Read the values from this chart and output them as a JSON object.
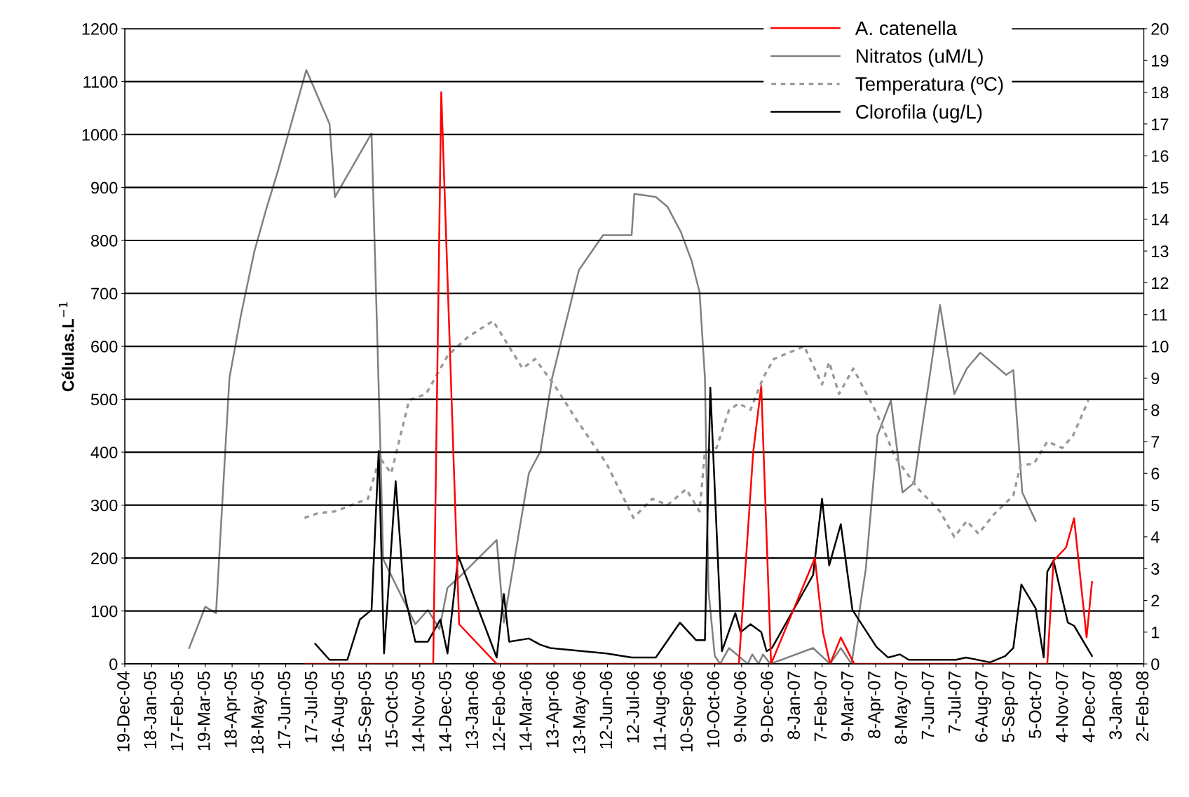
{
  "chart_data": {
    "type": "line",
    "ylabel": "Células.L$^{−1}$",
    "xlim": [
      "2004-12-19",
      "2008-02-02"
    ],
    "xticks": [
      {
        "value": "2004-12-19",
        "label": "19-Dec-04"
      },
      {
        "value": "2005-01-18",
        "label": "18-Jan-05"
      },
      {
        "value": "2005-02-17",
        "label": "17-Feb-05"
      },
      {
        "value": "2005-03-19",
        "label": "19-Mar-05"
      },
      {
        "value": "2005-04-18",
        "label": "18-Apr-05"
      },
      {
        "value": "2005-05-18",
        "label": "18-May-05"
      },
      {
        "value": "2005-06-17",
        "label": "17-Jun-05"
      },
      {
        "value": "2005-07-17",
        "label": "17-Jul-05"
      },
      {
        "value": "2005-08-16",
        "label": "16-Aug-05"
      },
      {
        "value": "2005-09-15",
        "label": "15-Sep-05"
      },
      {
        "value": "2005-10-15",
        "label": "15-Oct-05"
      },
      {
        "value": "2005-11-14",
        "label": "14-Nov-05"
      },
      {
        "value": "2005-12-14",
        "label": "14-Dec-05"
      },
      {
        "value": "2006-01-13",
        "label": "13-Jan-06"
      },
      {
        "value": "2006-02-12",
        "label": "12-Feb-06"
      },
      {
        "value": "2006-03-14",
        "label": "14-Mar-06"
      },
      {
        "value": "2006-04-13",
        "label": "13-Apr-06"
      },
      {
        "value": "2006-05-13",
        "label": "13-May-06"
      },
      {
        "value": "2006-06-12",
        "label": "12-Jun-06"
      },
      {
        "value": "2006-07-12",
        "label": "12-Jul-06"
      },
      {
        "value": "2006-08-11",
        "label": "11-Aug-06"
      },
      {
        "value": "2006-09-10",
        "label": "10-Sep-06"
      },
      {
        "value": "2006-10-10",
        "label": "10-Oct-06"
      },
      {
        "value": "2006-11-09",
        "label": "9-Nov-06"
      },
      {
        "value": "2006-12-09",
        "label": "9-Dec-06"
      },
      {
        "value": "2007-01-08",
        "label": "8-Jan-07"
      },
      {
        "value": "2007-02-07",
        "label": "7-Feb-07"
      },
      {
        "value": "2007-03-09",
        "label": "9-Mar-07"
      },
      {
        "value": "2007-04-08",
        "label": "8-Apr-07"
      },
      {
        "value": "2007-05-08",
        "label": "8-May-07"
      },
      {
        "value": "2007-06-07",
        "label": "7-Jun-07"
      },
      {
        "value": "2007-07-07",
        "label": "7-Jul-07"
      },
      {
        "value": "2007-08-06",
        "label": "6-Aug-07"
      },
      {
        "value": "2007-09-05",
        "label": "5-Sep-07"
      },
      {
        "value": "2007-10-05",
        "label": "5-Oct-07"
      },
      {
        "value": "2007-11-04",
        "label": "4-Nov-07"
      },
      {
        "value": "2007-12-04",
        "label": "4-Dec-07"
      },
      {
        "value": "2008-01-03",
        "label": "3-Jan-08"
      },
      {
        "value": "2008-02-02",
        "label": "2-Feb-08"
      }
    ],
    "ylim": [
      0,
      1200
    ],
    "yticks": [
      0,
      100,
      200,
      300,
      400,
      500,
      600,
      700,
      800,
      900,
      1000,
      1100,
      1200
    ],
    "y2lim": [
      0,
      20
    ],
    "y2ticks": [
      0,
      1,
      2,
      3,
      4,
      5,
      6,
      7,
      8,
      9,
      10,
      11,
      12,
      13,
      14,
      15,
      16,
      17,
      18,
      19,
      20
    ],
    "grid": "y",
    "legend": "top right",
    "marker": "none",
    "series": [
      {
        "name": "A. catenella",
        "color": "#ff0000",
        "line_style": "solid",
        "x": [
          "2005-07-08",
          "2005-11-29",
          "2005-12-08",
          "2005-12-28",
          "2006-02-08",
          "2006-11-06",
          "2006-11-22",
          "2006-12-01",
          "2006-12-12",
          "2007-01-30",
          "2007-02-08",
          "2007-02-16",
          "2007-02-28",
          "2007-03-15",
          "2007-10-17",
          "2007-10-24",
          "2007-11-07",
          "2007-11-16",
          "2007-11-30",
          "2007-12-06"
        ],
        "values": [
          0,
          0,
          1080,
          75,
          0,
          0,
          400,
          525,
          0,
          200,
          60,
          0,
          50,
          0,
          0,
          195,
          220,
          275,
          50,
          155
        ]
      },
      {
        "name": "Nitratos (uM/L)",
        "color": "#808080",
        "line_style": "solid",
        "axis": "y2",
        "x": [
          "2005-03-01",
          "2005-03-19",
          "2005-03-31",
          "2005-04-15",
          "2005-04-28",
          "2005-05-13",
          "2005-05-26",
          "2005-06-08",
          "2005-07-10",
          "2005-08-05",
          "2005-08-11",
          "2005-09-21",
          "2005-10-01",
          "2005-10-04",
          "2005-11-09",
          "2005-11-23",
          "2005-12-06",
          "2005-12-15",
          "2005-12-27",
          "2006-02-08",
          "2006-02-16",
          "2006-03-16",
          "2006-03-29",
          "2006-04-11",
          "2006-05-11",
          "2006-06-07",
          "2006-07-09",
          "2006-07-12",
          "2006-08-05",
          "2006-08-18",
          "2006-09-02",
          "2006-09-14",
          "2006-09-23",
          "2006-09-29",
          "2006-10-03",
          "2006-10-10",
          "2006-10-16",
          "2006-10-26",
          "2006-11-16",
          "2006-11-21",
          "2006-11-28",
          "2006-12-03",
          "2006-12-11",
          "2007-01-28",
          "2007-02-16",
          "2007-02-28",
          "2007-03-12",
          "2007-03-28",
          "2007-04-10",
          "2007-04-25",
          "2007-05-08",
          "2007-05-21",
          "2007-06-19",
          "2007-07-05",
          "2007-07-19",
          "2007-08-03",
          "2007-09-01",
          "2007-09-09",
          "2007-09-19",
          "2007-10-04"
        ],
        "values": [
          0.5,
          1.8,
          1.6,
          9.0,
          11.0,
          13.0,
          14.3,
          15.5,
          18.7,
          17.0,
          14.7,
          16.7,
          6.7,
          3.3,
          1.25,
          1.7,
          1.1,
          2.4,
          2.7,
          3.9,
          1.3,
          6.0,
          6.7,
          9.0,
          12.4,
          13.5,
          13.5,
          14.8,
          14.7,
          14.4,
          13.6,
          12.7,
          11.7,
          9.0,
          2.3,
          0.25,
          0,
          0.5,
          0,
          0.3,
          0,
          0.3,
          0,
          0.5,
          0,
          0.5,
          0,
          3.0,
          7.2,
          8.3,
          5.4,
          5.7,
          11.3,
          8.5,
          9.3,
          9.8,
          9.1,
          9.25,
          5.4,
          4.5
        ]
      },
      {
        "name": "Temperatura (ºC)",
        "color": "#999999",
        "line_style": "dotted",
        "axis": "y2",
        "x": [
          "2005-07-08",
          "2005-07-24",
          "2005-08-11",
          "2005-09-17",
          "2005-09-30",
          "2005-10-13",
          "2005-11-02",
          "2005-11-21",
          "2005-12-15",
          "2006-01-07",
          "2006-02-04",
          "2006-03-09",
          "2006-03-23",
          "2006-04-13",
          "2006-05-08",
          "2006-06-11",
          "2006-07-11",
          "2006-08-01",
          "2006-08-18",
          "2006-09-08",
          "2006-09-23",
          "2006-09-29",
          "2006-10-12",
          "2006-10-26",
          "2006-11-06",
          "2006-11-19",
          "2006-12-03",
          "2006-12-15",
          "2007-01-18",
          "2007-02-07",
          "2007-02-15",
          "2007-02-26",
          "2007-03-14",
          "2007-04-09",
          "2007-04-30",
          "2007-05-26",
          "2007-06-19",
          "2007-07-05",
          "2007-07-19",
          "2007-08-01",
          "2007-08-18",
          "2007-09-09",
          "2007-09-17",
          "2007-10-02",
          "2007-10-17",
          "2007-11-03",
          "2007-11-15",
          "2007-12-02"
        ],
        "values": [
          4.6,
          4.75,
          4.8,
          5.2,
          6.5,
          6.0,
          8.3,
          8.5,
          9.7,
          10.3,
          10.8,
          9.3,
          9.6,
          8.8,
          7.7,
          6.3,
          4.6,
          5.2,
          5.0,
          5.5,
          4.8,
          6.7,
          6.8,
          8.0,
          8.2,
          8.0,
          9.0,
          9.6,
          10.0,
          8.8,
          9.5,
          8.5,
          9.3,
          7.9,
          6.5,
          5.5,
          4.8,
          4.0,
          4.5,
          4.1,
          4.7,
          5.3,
          6.25,
          6.3,
          7.0,
          6.8,
          7.2,
          8.3
        ]
      },
      {
        "name": "Clorofila (ug/L)",
        "color": "#000000",
        "line_style": "solid",
        "axis": "y2",
        "x": [
          "2005-07-20",
          "2005-08-05",
          "2005-08-25",
          "2005-09-08",
          "2005-09-21",
          "2005-09-29",
          "2005-10-05",
          "2005-10-18",
          "2005-10-27",
          "2005-11-09",
          "2005-11-23",
          "2005-12-07",
          "2005-12-15",
          "2005-12-27",
          "2006-02-08",
          "2006-02-16",
          "2006-02-22",
          "2006-03-16",
          "2006-03-29",
          "2006-04-09",
          "2006-06-11",
          "2006-07-09",
          "2006-08-05",
          "2006-09-01",
          "2006-09-19",
          "2006-09-29",
          "2006-10-05",
          "2006-10-18",
          "2006-11-02",
          "2006-11-08",
          "2006-11-19",
          "2006-12-01",
          "2006-12-07",
          "2006-12-13",
          "2007-01-28",
          "2007-02-07",
          "2007-02-15",
          "2007-02-28",
          "2007-03-13",
          "2007-04-09",
          "2007-04-22",
          "2007-05-05",
          "2007-05-15",
          "2007-07-07",
          "2007-07-18",
          "2007-08-14",
          "2007-08-31",
          "2007-09-09",
          "2007-09-18",
          "2007-10-04",
          "2007-10-13",
          "2007-10-17",
          "2007-10-24",
          "2007-11-09",
          "2007-11-16",
          "2007-12-06"
        ],
        "values": [
          0.63,
          0.13,
          0.13,
          1.4,
          1.7,
          6.7,
          0.33,
          5.75,
          2.3,
          0.7,
          0.7,
          1.4,
          0.33,
          3.4,
          0.2,
          2.2,
          0.7,
          0.8,
          0.6,
          0.5,
          0.33,
          0.2,
          0.2,
          1.3,
          0.75,
          0.75,
          8.7,
          0.4,
          1.6,
          1.0,
          1.25,
          1.0,
          0.4,
          0.5,
          2.8,
          5.2,
          3.1,
          4.4,
          1.7,
          0.53,
          0.2,
          0.3,
          0.13,
          0.13,
          0.2,
          0.05,
          0.25,
          0.5,
          2.5,
          1.75,
          0.2,
          2.9,
          3.25,
          1.3,
          1.2,
          0.25
        ]
      }
    ]
  }
}
